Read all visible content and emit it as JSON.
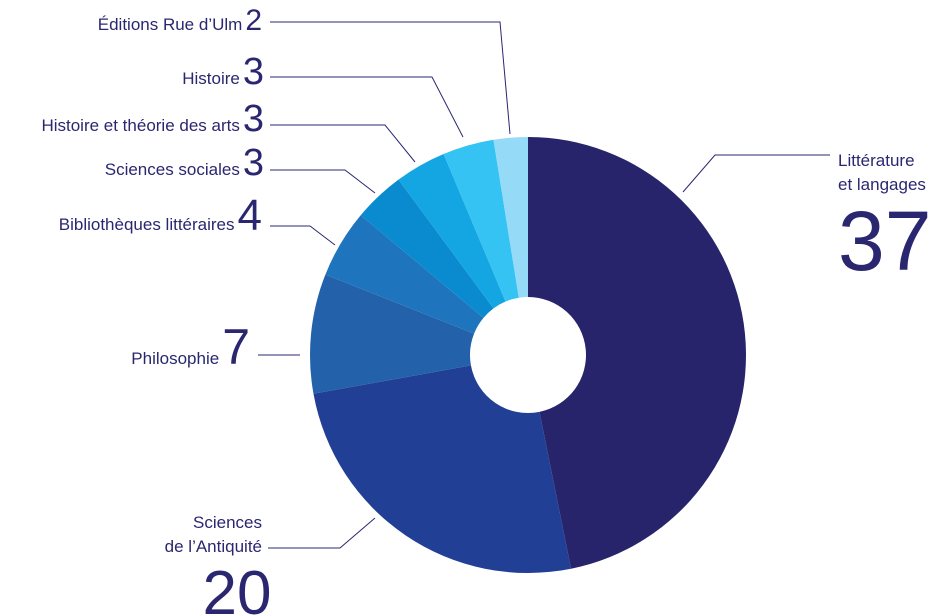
{
  "chart_data": {
    "type": "donut",
    "categories": [
      [
        "Littérature",
        "et langages"
      ],
      [
        "Sciences",
        "de l’Antiquité"
      ],
      [
        "Philosophie"
      ],
      [
        "Bibliothèques littéraires"
      ],
      [
        "Sciences sociales"
      ],
      [
        "Histoire et théorie des arts"
      ],
      [
        "Histoire"
      ],
      [
        "Éditions Rue d’Ulm"
      ]
    ],
    "values": [
      37,
      20,
      7,
      4,
      3,
      3,
      3,
      2
    ],
    "colors": [
      "#27246b",
      "#213f94",
      "#2361ab",
      "#1e74bd",
      "#0a8bcf",
      "#14a6e2",
      "#34c3f3",
      "#95dbf7"
    ]
  }
}
